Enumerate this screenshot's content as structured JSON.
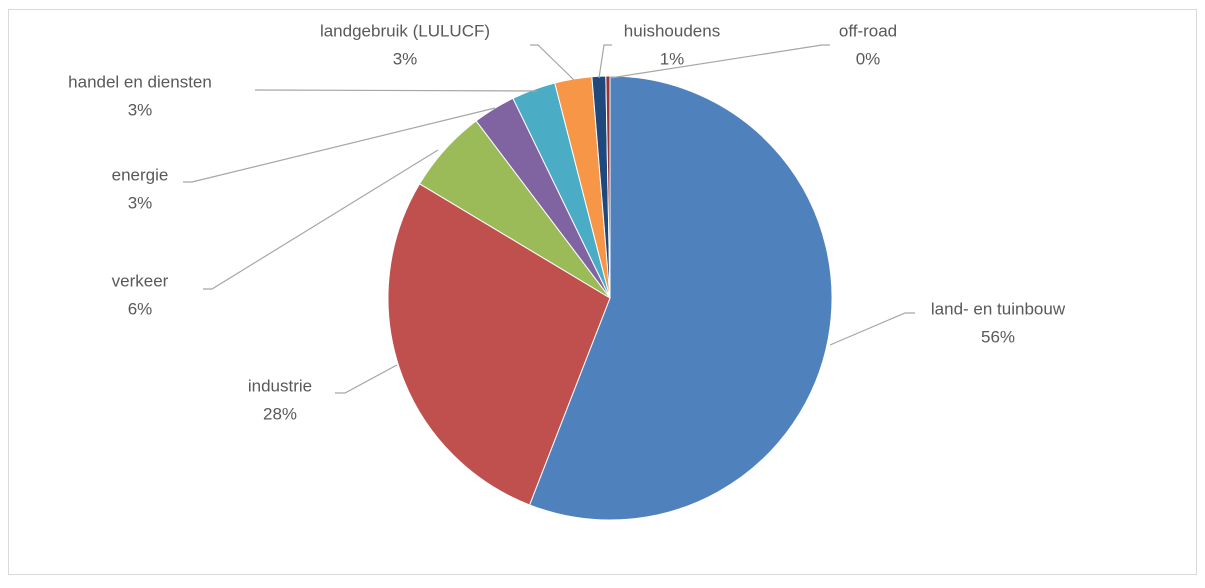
{
  "chart_data": {
    "type": "pie",
    "categories": [
      "land- en tuinbouw",
      "industrie",
      "verkeer",
      "energie",
      "handel en diensten",
      "landgebruik (LULUCF)",
      "huishoudens",
      "off-road"
    ],
    "values": [
      55.9,
      27.7,
      6.1,
      3.1,
      3.2,
      2.7,
      1.0,
      0.3
    ],
    "value_labels": [
      "56%",
      "28%",
      "6%",
      "3%",
      "3%",
      "3%",
      "1%",
      "0%"
    ],
    "colors": [
      "#4f81bd",
      "#c0504d",
      "#9bbb59",
      "#8064a2",
      "#4bacc6",
      "#f79646",
      "#1f497d",
      "#943634"
    ]
  }
}
